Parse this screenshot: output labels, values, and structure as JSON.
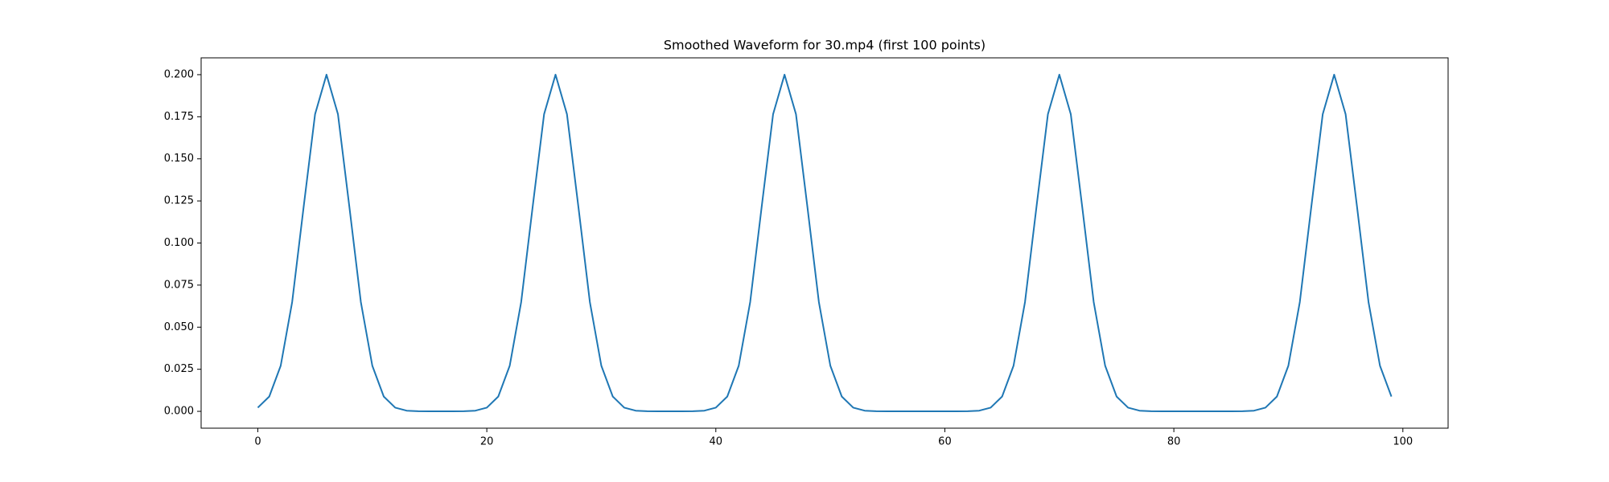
{
  "chart_data": {
    "type": "line",
    "title": "Smoothed Waveform for 30.mp4 (first 100 points)",
    "x": [
      0,
      1,
      2,
      3,
      4,
      5,
      6,
      7,
      8,
      9,
      10,
      11,
      12,
      13,
      14,
      15,
      16,
      17,
      18,
      19,
      20,
      21,
      22,
      23,
      24,
      25,
      26,
      27,
      28,
      29,
      30,
      31,
      32,
      33,
      34,
      35,
      36,
      37,
      38,
      39,
      40,
      41,
      42,
      43,
      44,
      45,
      46,
      47,
      48,
      49,
      50,
      51,
      52,
      53,
      54,
      55,
      56,
      57,
      58,
      59,
      60,
      61,
      62,
      63,
      64,
      65,
      66,
      67,
      68,
      69,
      70,
      71,
      72,
      73,
      74,
      75,
      76,
      77,
      78,
      79,
      80,
      81,
      82,
      83,
      84,
      85,
      86,
      87,
      88,
      89,
      90,
      91,
      92,
      93,
      94,
      95,
      96,
      97,
      98,
      99
    ],
    "values": [
      0.0022,
      0.0088,
      0.0271,
      0.0649,
      0.1213,
      0.1765,
      0.2,
      0.1765,
      0.1213,
      0.0649,
      0.0271,
      0.0088,
      0.0022,
      0.0004,
      0.0001,
      0,
      0,
      0,
      0.0001,
      0.0004,
      0.0022,
      0.0088,
      0.0271,
      0.0649,
      0.1213,
      0.1765,
      0.2,
      0.1765,
      0.1213,
      0.0649,
      0.0271,
      0.0088,
      0.0022,
      0.0004,
      0.0001,
      0,
      0,
      0,
      0.0001,
      0.0004,
      0.0022,
      0.0088,
      0.0271,
      0.0649,
      0.1213,
      0.1765,
      0.2,
      0.1765,
      0.1213,
      0.0649,
      0.0271,
      0.0088,
      0.0022,
      0.0004,
      0.0001,
      0,
      0,
      0,
      0,
      0,
      0,
      0,
      0.0001,
      0.0004,
      0.0022,
      0.0088,
      0.0271,
      0.0649,
      0.1213,
      0.1765,
      0.2,
      0.1765,
      0.1213,
      0.0649,
      0.0271,
      0.0088,
      0.0022,
      0.0004,
      0.0001,
      0,
      0,
      0,
      0,
      0,
      0,
      0,
      0.0001,
      0.0004,
      0.0022,
      0.0088,
      0.0271,
      0.0649,
      0.1213,
      0.1765,
      0.2,
      0.1765,
      0.1213,
      0.0649,
      0.0271,
      0.0088
    ],
    "color": "#1f77b4",
    "xlim": [
      -4.95,
      103.95
    ],
    "xticks": [
      0,
      20,
      40,
      60,
      80,
      100
    ],
    "ylim": [
      -0.01,
      0.21
    ],
    "yticks": [
      {
        "value": 0,
        "label": "0.000"
      },
      {
        "value": 0.025,
        "label": "0.025"
      },
      {
        "value": 0.05,
        "label": "0.050"
      },
      {
        "value": 0.075,
        "label": "0.075"
      },
      {
        "value": 0.1,
        "label": "0.100"
      },
      {
        "value": 0.125,
        "label": "0.125"
      },
      {
        "value": 0.15,
        "label": "0.150"
      },
      {
        "value": 0.175,
        "label": "0.175"
      },
      {
        "value": 0.2,
        "label": "0.200"
      }
    ],
    "grid": false
  }
}
